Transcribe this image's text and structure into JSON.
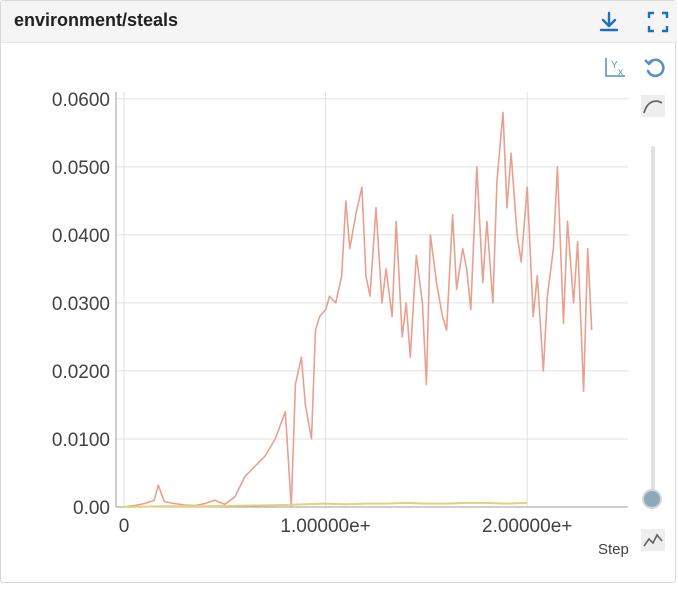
{
  "card": {
    "title": "environment/steals",
    "icons": {
      "download": "download-icon",
      "fullscreen": "fullscreen-icon",
      "fit_domain": "fit-domain-icon",
      "reset": "reset-zoom-icon",
      "smoothing": "smoothing-curve-icon",
      "x_axis_type": "x-axis-type-icon"
    },
    "colors": {
      "accent": "#1e6fc2",
      "series_main": "#e8a090",
      "series_secondary": "#e6cf7a"
    }
  },
  "slider": {
    "smoothing_value": 0
  },
  "chart_data": {
    "type": "line",
    "xlabel": "Step",
    "ylabel": "",
    "xlim": [
      0,
      2.5
    ],
    "ylim": [
      0,
      0.061
    ],
    "grid": true,
    "x_ticks": [
      {
        "value": 0,
        "label": "0"
      },
      {
        "value": 1.0,
        "label": "1.00000e+"
      },
      {
        "value": 2.0,
        "label": "2.00000e+"
      }
    ],
    "y_ticks": [
      {
        "value": 0.0,
        "label": "0.00"
      },
      {
        "value": 0.01,
        "label": "0.0100"
      },
      {
        "value": 0.02,
        "label": "0.0200"
      },
      {
        "value": 0.03,
        "label": "0.0300"
      },
      {
        "value": 0.04,
        "label": "0.0400"
      },
      {
        "value": 0.05,
        "label": "0.0500"
      },
      {
        "value": 0.06,
        "label": "0.0600"
      }
    ],
    "series": [
      {
        "color": "#e8a090",
        "x": [
          0.0,
          0.05,
          0.1,
          0.15,
          0.17,
          0.2,
          0.25,
          0.3,
          0.35,
          0.4,
          0.45,
          0.5,
          0.55,
          0.6,
          0.65,
          0.7,
          0.75,
          0.8,
          0.83,
          0.85,
          0.88,
          0.9,
          0.93,
          0.95,
          0.97,
          1.0,
          1.02,
          1.05,
          1.08,
          1.1,
          1.12,
          1.15,
          1.18,
          1.2,
          1.22,
          1.25,
          1.28,
          1.3,
          1.33,
          1.35,
          1.38,
          1.4,
          1.42,
          1.45,
          1.48,
          1.5,
          1.52,
          1.55,
          1.58,
          1.6,
          1.63,
          1.65,
          1.68,
          1.7,
          1.72,
          1.75,
          1.78,
          1.8,
          1.83,
          1.85,
          1.88,
          1.9,
          1.92,
          1.95,
          1.97,
          2.0,
          2.03,
          2.05,
          2.08,
          2.1,
          2.13,
          2.15,
          2.18,
          2.2,
          2.23,
          2.25,
          2.28,
          2.3,
          2.32
        ],
        "y": [
          0.0,
          0.0002,
          0.0005,
          0.001,
          0.0032,
          0.0008,
          0.0005,
          0.0003,
          0.0002,
          0.0005,
          0.001,
          0.0004,
          0.0015,
          0.0045,
          0.006,
          0.0075,
          0.01,
          0.014,
          0.0,
          0.018,
          0.022,
          0.015,
          0.01,
          0.026,
          0.028,
          0.029,
          0.031,
          0.03,
          0.034,
          0.045,
          0.038,
          0.043,
          0.047,
          0.034,
          0.031,
          0.044,
          0.03,
          0.035,
          0.028,
          0.042,
          0.025,
          0.03,
          0.022,
          0.037,
          0.03,
          0.018,
          0.04,
          0.033,
          0.028,
          0.026,
          0.043,
          0.032,
          0.038,
          0.035,
          0.029,
          0.05,
          0.033,
          0.042,
          0.03,
          0.048,
          0.058,
          0.044,
          0.052,
          0.04,
          0.036,
          0.047,
          0.028,
          0.034,
          0.02,
          0.031,
          0.038,
          0.05,
          0.027,
          0.042,
          0.03,
          0.039,
          0.017,
          0.038,
          0.026
        ]
      },
      {
        "color": "#e6cf7a",
        "x": [
          0.0,
          0.2,
          0.4,
          0.6,
          0.8,
          0.9,
          1.0,
          1.1,
          1.2,
          1.3,
          1.4,
          1.5,
          1.6,
          1.7,
          1.8,
          1.9,
          2.0
        ],
        "y": [
          0.0,
          0.0001,
          0.0001,
          0.0002,
          0.0003,
          0.0004,
          0.0005,
          0.0004,
          0.0005,
          0.0005,
          0.0006,
          0.0005,
          0.0005,
          0.0006,
          0.0006,
          0.0005,
          0.0006
        ]
      }
    ]
  }
}
